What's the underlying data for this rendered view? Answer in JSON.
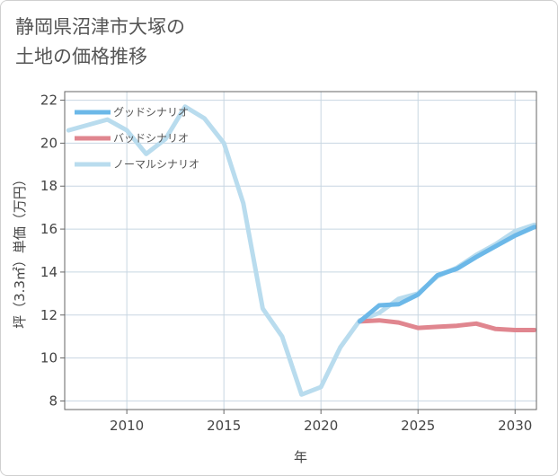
{
  "title": "静岡県沼津市大塚の\n土地の価格推移",
  "chart_data": {
    "type": "line",
    "title": "静岡県沼津市大塚の土地の価格推移",
    "xlabel": "年",
    "ylabel": "坪（3.3㎡）単価（万円）",
    "xlim": [
      2006.8,
      2031.1
    ],
    "ylim": [
      7.6,
      22.4
    ],
    "xticks": [
      2010,
      2015,
      2020,
      2025,
      2030
    ],
    "yticks": [
      8,
      10,
      12,
      14,
      16,
      18,
      20,
      22
    ],
    "grid": true,
    "legend_position": "top-left",
    "series": [
      {
        "name": "グッドシナリオ",
        "color": "#6cb8e8",
        "x": [
          2022,
          2023,
          2024,
          2025,
          2026,
          2027,
          2028,
          2029,
          2030,
          2031
        ],
        "y": [
          11.7,
          12.45,
          12.5,
          12.95,
          13.85,
          14.15,
          14.7,
          15.2,
          15.7,
          16.1
        ]
      },
      {
        "name": "バッドシナリオ",
        "color": "#e0868f",
        "x": [
          2022,
          2023,
          2024,
          2025,
          2026,
          2027,
          2028,
          2029,
          2030,
          2031
        ],
        "y": [
          11.7,
          11.75,
          11.65,
          11.4,
          11.45,
          11.5,
          11.6,
          11.35,
          11.3,
          11.3
        ]
      },
      {
        "name": "ノーマルシナリオ",
        "color": "#b9dcee",
        "x": [
          2007,
          2008,
          2009,
          2010,
          2011,
          2012,
          2013,
          2014,
          2015,
          2016,
          2017,
          2018,
          2019,
          2020,
          2021,
          2022,
          2023,
          2024,
          2025,
          2026,
          2027,
          2028,
          2029,
          2030,
          2031
        ],
        "y": [
          20.6,
          20.85,
          21.1,
          20.6,
          19.5,
          20.2,
          21.7,
          21.15,
          20.0,
          17.2,
          12.3,
          11.0,
          8.3,
          8.65,
          10.5,
          11.75,
          12.1,
          12.75,
          13.0,
          13.8,
          14.2,
          14.8,
          15.3,
          15.9,
          16.2
        ]
      }
    ]
  }
}
